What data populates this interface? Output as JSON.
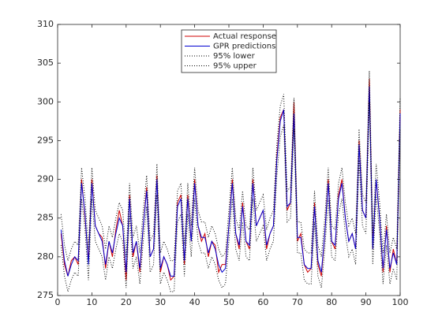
{
  "chart_data": {
    "type": "line",
    "x": [
      1,
      2,
      3,
      4,
      5,
      6,
      7,
      8,
      9,
      10,
      11,
      12,
      13,
      14,
      15,
      16,
      17,
      18,
      19,
      20,
      21,
      22,
      23,
      24,
      25,
      26,
      27,
      28,
      29,
      30,
      31,
      32,
      33,
      34,
      35,
      36,
      37,
      38,
      39,
      40,
      41,
      42,
      43,
      44,
      45,
      46,
      47,
      48,
      49,
      50,
      51,
      52,
      53,
      54,
      55,
      56,
      57,
      58,
      59,
      60,
      61,
      62,
      63,
      64,
      65,
      66,
      67,
      68,
      69,
      70,
      71,
      72,
      73,
      74,
      75,
      76,
      77,
      78,
      79,
      80,
      81,
      82,
      83,
      84,
      85,
      86,
      87,
      88,
      89,
      90,
      91,
      92,
      93,
      94,
      95,
      96,
      97,
      98,
      99,
      100
    ],
    "series": [
      {
        "name": "Actual response",
        "color": "#d00000",
        "style": "solid",
        "values": [
          283,
          279,
          277.5,
          279.5,
          280,
          279,
          290,
          285,
          279.5,
          290,
          284,
          283,
          282.5,
          278.5,
          282,
          280,
          283.5,
          286,
          284,
          277,
          288,
          280,
          282,
          278,
          284,
          289,
          280,
          281,
          290.5,
          278,
          280,
          279,
          277,
          277.5,
          287,
          288,
          279,
          288,
          282,
          290,
          284,
          282,
          283,
          280,
          282,
          281.5,
          278,
          279,
          279,
          284,
          290,
          283,
          281,
          287,
          282,
          281,
          290,
          284,
          285,
          286,
          281,
          283,
          284,
          293,
          298,
          299,
          286,
          287,
          300,
          282,
          283,
          279,
          278,
          278.5,
          287,
          279,
          277.5,
          283,
          290,
          282,
          281,
          288,
          290,
          285,
          282,
          283,
          281,
          295,
          286,
          285,
          303,
          281,
          290,
          285,
          278,
          284,
          278,
          281,
          279,
          299
        ]
      },
      {
        "name": "GPR predictions",
        "color": "#0000d0",
        "style": "solid",
        "values": [
          283.5,
          279.5,
          277.5,
          279,
          280,
          279.5,
          289.5,
          285.5,
          279,
          289.5,
          284,
          283,
          282,
          279,
          282,
          280.5,
          283,
          285,
          284,
          278,
          287.5,
          280.5,
          282,
          278.5,
          284,
          288.5,
          280,
          281,
          290,
          278.5,
          280,
          279,
          277.5,
          277.5,
          286.5,
          287.5,
          279.5,
          287.5,
          282,
          289.5,
          284,
          282.5,
          282.5,
          280.5,
          282,
          281,
          279,
          278,
          278.5,
          284,
          289.5,
          283,
          281.5,
          286.5,
          282,
          281.5,
          289.5,
          284,
          285,
          286,
          281.5,
          283,
          284,
          292.5,
          297.5,
          299,
          286.5,
          287,
          298.5,
          282.5,
          282.5,
          279,
          278.5,
          278.5,
          286.5,
          279.5,
          278,
          283,
          289.5,
          282,
          281.5,
          287.5,
          289.5,
          285,
          282,
          283,
          281,
          294.5,
          286,
          285,
          302,
          281,
          290,
          285,
          278.5,
          283.5,
          278.5,
          280.5,
          279,
          298.5
        ]
      },
      {
        "name": "95% lower",
        "color": "#000000",
        "style": "dotted",
        "values": [
          281.5,
          277.5,
          275.5,
          277,
          278,
          277.5,
          287.5,
          283.5,
          277,
          287.5,
          282,
          281,
          280,
          277,
          280,
          278.5,
          281,
          283,
          282,
          276,
          285.5,
          278.5,
          280,
          276.5,
          282,
          286.5,
          278,
          279,
          288,
          276.5,
          278,
          277,
          275.5,
          275.5,
          284.5,
          285.5,
          277.5,
          285.5,
          280,
          287.5,
          282,
          280.5,
          280.5,
          278.5,
          280,
          279,
          277,
          276,
          276.5,
          282,
          287.5,
          281,
          279.5,
          284.5,
          280,
          279.5,
          287.5,
          282,
          283,
          284,
          279.5,
          281,
          282,
          290.5,
          295.5,
          297,
          284.5,
          285,
          296.5,
          280.5,
          280.5,
          277,
          276.5,
          276.5,
          284.5,
          277.5,
          276,
          281,
          287.5,
          280,
          279.5,
          285.5,
          287.5,
          283,
          280,
          281,
          279,
          292.5,
          284,
          283,
          300,
          279,
          288,
          283,
          276.5,
          281.5,
          276.5,
          278.5,
          277,
          296.5
        ]
      },
      {
        "name": "95% upper",
        "color": "#000000",
        "style": "dotted",
        "values": [
          285.5,
          281.5,
          279.5,
          281,
          282,
          281.5,
          291.5,
          287.5,
          281,
          291.5,
          286,
          285,
          284,
          281,
          284,
          282.5,
          285,
          287,
          286,
          280,
          289.5,
          282.5,
          284,
          280.5,
          286,
          290.5,
          282,
          283,
          292,
          280.5,
          282,
          281,
          279.5,
          279.5,
          288.5,
          289.5,
          281.5,
          289.5,
          284,
          291.5,
          286,
          284.5,
          284.5,
          282.5,
          284,
          283,
          281,
          280,
          280.5,
          286,
          291.5,
          285,
          283.5,
          288.5,
          284,
          283.5,
          291.5,
          286,
          287,
          288,
          283.5,
          285,
          286,
          294.5,
          299.5,
          301,
          288.5,
          289,
          300.5,
          284.5,
          284.5,
          281,
          280.5,
          280.5,
          288.5,
          281.5,
          280,
          285,
          291.5,
          284,
          283.5,
          289.5,
          291.5,
          287,
          284,
          285,
          283,
          296.5,
          288,
          287,
          304,
          283,
          292,
          287,
          280.5,
          285.5,
          280.5,
          282.5,
          281,
          300.5
        ]
      }
    ],
    "xlim": [
      0,
      100
    ],
    "xticks": [
      0,
      10,
      20,
      30,
      40,
      50,
      60,
      70,
      80,
      90,
      100
    ],
    "ylim": [
      275,
      310
    ],
    "yticks": [
      275,
      280,
      285,
      290,
      295,
      300,
      305,
      310
    ],
    "legend": "top"
  }
}
